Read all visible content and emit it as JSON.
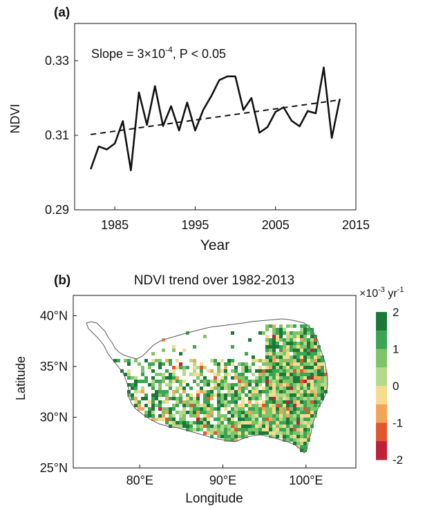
{
  "panel_a": {
    "label": "(a)",
    "annotation_prefix": "Slope = 3×10",
    "annotation_exp": "-4",
    "annotation_suffix": ", P < 0.05"
  },
  "panel_b": {
    "label": "(b)",
    "title": "NDVI trend over 1982-2013",
    "colorbar_unit_prefix": "×10",
    "colorbar_unit_exp": "-3",
    "colorbar_unit_mid": " yr",
    "colorbar_unit_exp2": "-1",
    "colorbar_ticks": [
      "2",
      "1",
      "0",
      "-1",
      "-2"
    ],
    "colorbar_colors": [
      "#1b7837",
      "#3aa553",
      "#80c46a",
      "#b5d98a",
      "#f5dc8c",
      "#f2a558",
      "#e2572e",
      "#c0203a"
    ]
  },
  "chart_data": [
    {
      "type": "line",
      "title": "",
      "xlabel": "Year",
      "ylabel": "NDVI",
      "xlim": [
        1980,
        2015
      ],
      "ylim": [
        0.29,
        0.34
      ],
      "xticks": [
        "1985",
        "1995",
        "2005",
        "2015"
      ],
      "yticks": [
        "0.29",
        "0.31",
        "0.33"
      ],
      "grid": false,
      "series": [
        {
          "x": [
            1982,
            1983,
            1984,
            1985,
            1986,
            1987,
            1988,
            1989,
            1990,
            1991,
            1992,
            1993,
            1994,
            1995,
            1996,
            1997,
            1998,
            1999,
            2000,
            2001,
            2002,
            2003,
            2004,
            2005,
            2006,
            2007,
            2008,
            2009,
            2010,
            2011,
            2012,
            2013
          ],
          "values": [
            0.3009,
            0.307,
            0.3062,
            0.3078,
            0.3138,
            0.3006,
            0.3215,
            0.3128,
            0.3232,
            0.3125,
            0.3178,
            0.3113,
            0.3188,
            0.3113,
            0.3168,
            0.3205,
            0.3248,
            0.3258,
            0.3258,
            0.3168,
            0.32,
            0.3107,
            0.3122,
            0.3163,
            0.3175,
            0.3139,
            0.3124,
            0.3165,
            0.3159,
            0.3282,
            0.3093,
            0.3198
          ]
        },
        {
          "x": [
            1982,
            2013
          ],
          "values": [
            0.3102,
            0.3195
          ]
        }
      ]
    },
    {
      "type": "heatmap",
      "title": "NDVI trend over 1982-2013",
      "xlabel": "Longitude",
      "ylabel": "Latitude",
      "xlim": [
        72,
        106
      ],
      "ylim": [
        25,
        42
      ],
      "xticks": [
        "80°E",
        "90°E",
        "100°E"
      ],
      "yticks": [
        "40°N",
        "35°N",
        "30°N",
        "25°N"
      ],
      "colorbar_range": [
        -2,
        2
      ]
    }
  ]
}
